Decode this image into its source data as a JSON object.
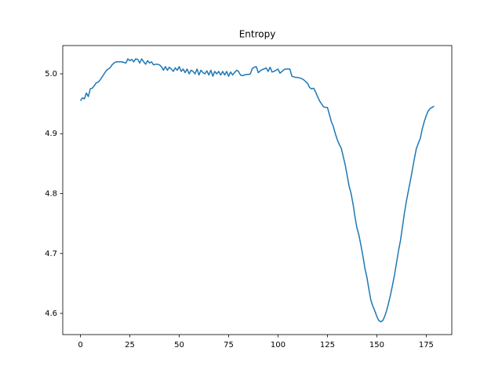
{
  "chart_data": {
    "type": "line",
    "title": "Entropy",
    "x": [
      0,
      1,
      2,
      3,
      4,
      5,
      6,
      7,
      8,
      9,
      10,
      11,
      12,
      13,
      14,
      15,
      16,
      17,
      18,
      19,
      20,
      21,
      22,
      23,
      24,
      25,
      26,
      27,
      28,
      29,
      30,
      31,
      32,
      33,
      34,
      35,
      36,
      37,
      38,
      39,
      40,
      41,
      42,
      43,
      44,
      45,
      46,
      47,
      48,
      49,
      50,
      51,
      52,
      53,
      54,
      55,
      56,
      57,
      58,
      59,
      60,
      61,
      62,
      63,
      64,
      65,
      66,
      67,
      68,
      69,
      70,
      71,
      72,
      73,
      74,
      75,
      76,
      77,
      78,
      79,
      80,
      81,
      82,
      83,
      84,
      85,
      86,
      87,
      88,
      89,
      90,
      91,
      92,
      93,
      94,
      95,
      96,
      97,
      98,
      99,
      100,
      101,
      102,
      103,
      104,
      105,
      106,
      107,
      108,
      109,
      110,
      111,
      112,
      113,
      114,
      115,
      116,
      117,
      118,
      119,
      120,
      121,
      122,
      123,
      124,
      125,
      126,
      127,
      128,
      129,
      130,
      131,
      132,
      133,
      134,
      135,
      136,
      137,
      138,
      139,
      140,
      141,
      142,
      143,
      144,
      145,
      146,
      147,
      148,
      149,
      150,
      151,
      152,
      153,
      154,
      155,
      156,
      157,
      158,
      159,
      160,
      161,
      162,
      163,
      164,
      165,
      166,
      167,
      168,
      169,
      170,
      171,
      172,
      173,
      174,
      175,
      176,
      177,
      178,
      179
    ],
    "series": [
      {
        "color": "#1f77b4",
        "values": [
          4.955,
          4.96,
          4.958,
          4.968,
          4.962,
          4.975,
          4.976,
          4.98,
          4.985,
          4.986,
          4.99,
          4.995,
          5.0,
          5.005,
          5.008,
          5.01,
          5.015,
          5.018,
          5.02,
          5.02,
          5.02,
          5.02,
          5.019,
          5.018,
          5.025,
          5.022,
          5.024,
          5.02,
          5.025,
          5.024,
          5.018,
          5.025,
          5.02,
          5.016,
          5.022,
          5.018,
          5.02,
          5.015,
          5.016,
          5.016,
          5.015,
          5.012,
          5.006,
          5.012,
          5.006,
          5.011,
          5.008,
          5.004,
          5.01,
          5.006,
          5.012,
          5.004,
          5.008,
          5.002,
          5.008,
          5.0,
          5.006,
          5.004,
          5.0,
          5.008,
          4.998,
          5.006,
          5.002,
          5.0,
          5.005,
          4.998,
          5.006,
          4.996,
          5.004,
          5.0,
          5.004,
          4.998,
          5.004,
          4.998,
          5.004,
          4.996,
          5.003,
          4.998,
          5.002,
          5.006,
          5.004,
          4.998,
          4.997,
          4.998,
          4.999,
          4.999,
          5.0,
          5.009,
          5.011,
          5.012,
          5.002,
          5.005,
          5.007,
          5.008,
          5.01,
          5.004,
          5.011,
          5.003,
          5.004,
          5.006,
          5.008,
          5.001,
          5.004,
          5.007,
          5.008,
          5.008,
          5.008,
          4.996,
          4.995,
          4.994,
          4.994,
          4.993,
          4.992,
          4.99,
          4.987,
          4.984,
          4.977,
          4.975,
          4.976,
          4.97,
          4.962,
          4.955,
          4.95,
          4.945,
          4.944,
          4.944,
          4.932,
          4.92,
          4.912,
          4.9,
          4.89,
          4.882,
          4.876,
          4.862,
          4.848,
          4.83,
          4.812,
          4.8,
          4.782,
          4.76,
          4.742,
          4.73,
          4.713,
          4.695,
          4.675,
          4.66,
          4.64,
          4.622,
          4.612,
          4.604,
          4.595,
          4.588,
          4.586,
          4.588,
          4.595,
          4.605,
          4.618,
          4.632,
          4.648,
          4.665,
          4.685,
          4.705,
          4.722,
          4.745,
          4.768,
          4.788,
          4.805,
          4.822,
          4.84,
          4.858,
          4.875,
          4.884,
          4.892,
          4.908,
          4.92,
          4.93,
          4.938,
          4.942,
          4.944,
          4.946
        ]
      }
    ],
    "xlim": [
      -8.95,
      187.95
    ],
    "xticks": [
      0,
      25,
      50,
      75,
      100,
      125,
      150,
      175
    ],
    "ylim": [
      4.5646,
      5.0472
    ],
    "yticks": [
      4.6,
      4.7,
      4.8,
      4.9,
      {
        "value": 5,
        "label": "5.0"
      }
    ],
    "grid": false
  }
}
